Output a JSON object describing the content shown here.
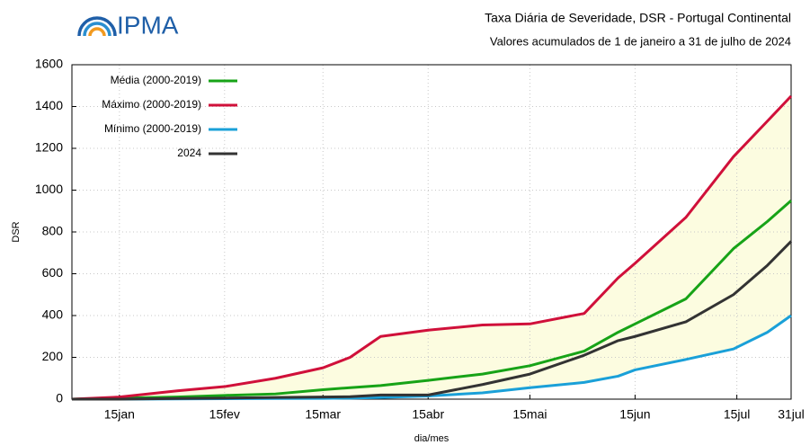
{
  "logo": "IPMA",
  "chart_data": {
    "type": "line",
    "title": "Taxa Diária de Severidade, DSR - Portugal Continental",
    "subtitle": "Valores acumulados de 1 de janeiro a 31 de julho de 2024",
    "xlabel": "dia/mes",
    "ylabel": "DSR",
    "x": [
      1,
      15,
      32,
      46,
      61,
      75,
      83,
      92,
      106,
      122,
      136,
      152,
      162,
      167,
      182,
      196,
      206,
      213
    ],
    "xlim": [
      1,
      213
    ],
    "xticks": [
      {
        "value": 15,
        "label": "15jan"
      },
      {
        "value": 46,
        "label": "15fev"
      },
      {
        "value": 75,
        "label": "15mar"
      },
      {
        "value": 106,
        "label": "15abr"
      },
      {
        "value": 136,
        "label": "15mai"
      },
      {
        "value": 167,
        "label": "15jun"
      },
      {
        "value": 197,
        "label": "15jul"
      },
      {
        "value": 213,
        "label": "31jul"
      }
    ],
    "ylim": [
      0,
      1600
    ],
    "yticks": [
      0,
      200,
      400,
      600,
      800,
      1000,
      1200,
      1400,
      1600
    ],
    "grid": true,
    "legend": "top-left",
    "band": {
      "between": [
        1,
        2
      ],
      "color": "#fcfce0"
    },
    "series": [
      {
        "name": "Média (2000-2019)",
        "color": "#17a317",
        "values": [
          0,
          5,
          10,
          18,
          25,
          45,
          55,
          65,
          90,
          120,
          160,
          230,
          320,
          360,
          480,
          720,
          850,
          950
        ]
      },
      {
        "name": "Máximo (2000-2019)",
        "color": "#d0103a",
        "values": [
          0,
          10,
          40,
          60,
          100,
          150,
          200,
          300,
          330,
          355,
          360,
          410,
          580,
          650,
          870,
          1160,
          1330,
          1450
        ]
      },
      {
        "name": "Mínimo (2000-2019)",
        "color": "#1aa0d8",
        "values": [
          0,
          0,
          1,
          2,
          3,
          4,
          5,
          8,
          15,
          30,
          55,
          80,
          110,
          140,
          190,
          240,
          320,
          400
        ]
      },
      {
        "name": "2024",
        "color": "#333333",
        "values": [
          0,
          0,
          3,
          5,
          8,
          10,
          12,
          20,
          20,
          70,
          120,
          210,
          280,
          300,
          370,
          500,
          640,
          755
        ]
      }
    ]
  }
}
